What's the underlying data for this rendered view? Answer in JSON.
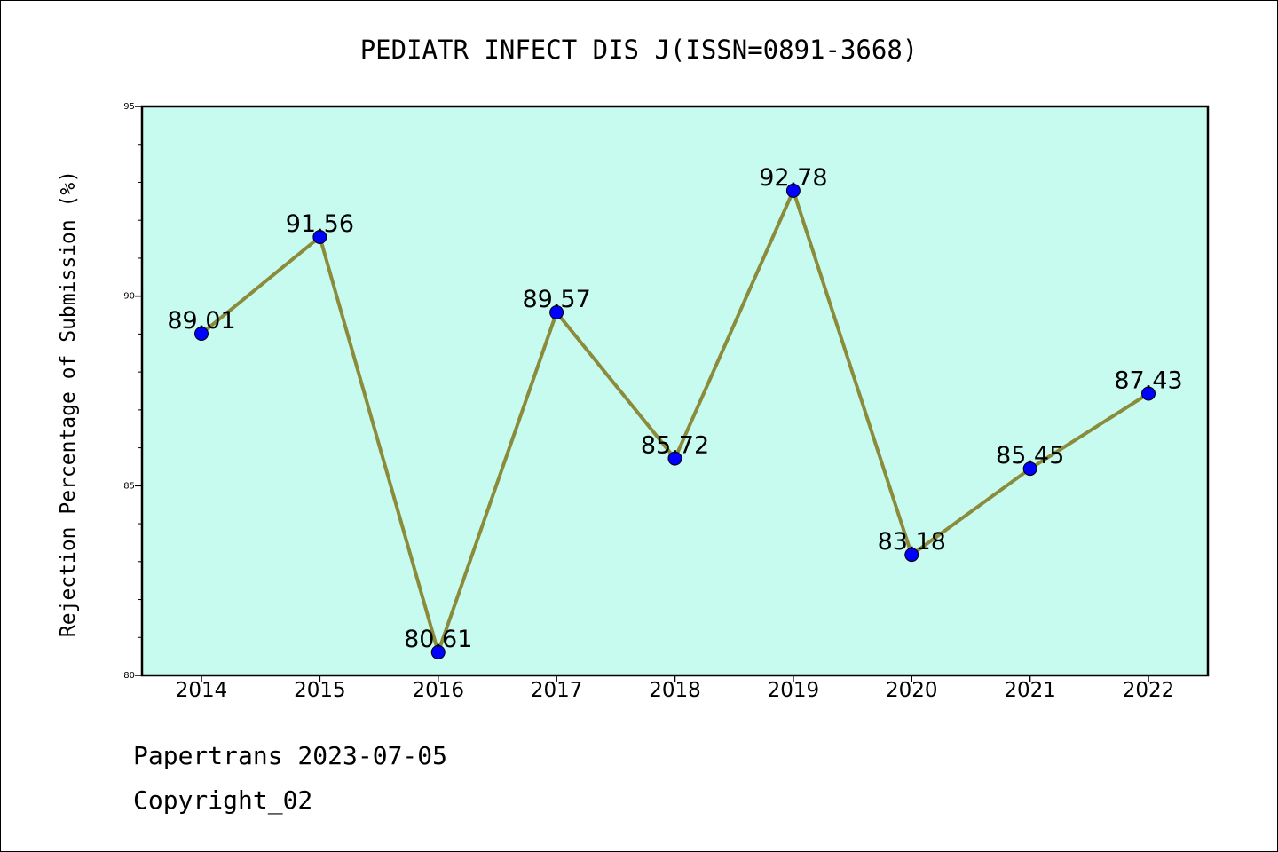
{
  "chart_data": {
    "type": "line",
    "title": "PEDIATR INFECT DIS J(ISSN=0891-3668)",
    "xlabel": "",
    "ylabel": "Rejection Percentage of Submission (%)",
    "categories": [
      "2014",
      "2015",
      "2016",
      "2017",
      "2018",
      "2019",
      "2020",
      "2021",
      "2022"
    ],
    "series": [
      {
        "values": [
          89.01,
          91.56,
          80.61,
          89.57,
          85.72,
          92.78,
          83.18,
          85.45,
          87.43
        ],
        "labels": [
          "89.01",
          "91.56",
          "80.61",
          "89.57",
          "85.72",
          "92.78",
          "83.18",
          "85.45",
          "87.43"
        ]
      }
    ],
    "ylim": [
      80,
      95
    ],
    "yticks": [
      "80",
      "85",
      "90",
      "95"
    ],
    "grid": false,
    "colors": {
      "plot_background": "#c8fbef",
      "line": "#8b8b3c",
      "marker": "#0000ff"
    }
  },
  "footer": {
    "line1": "Papertrans 2023-07-05",
    "line2": "Copyright_02"
  }
}
